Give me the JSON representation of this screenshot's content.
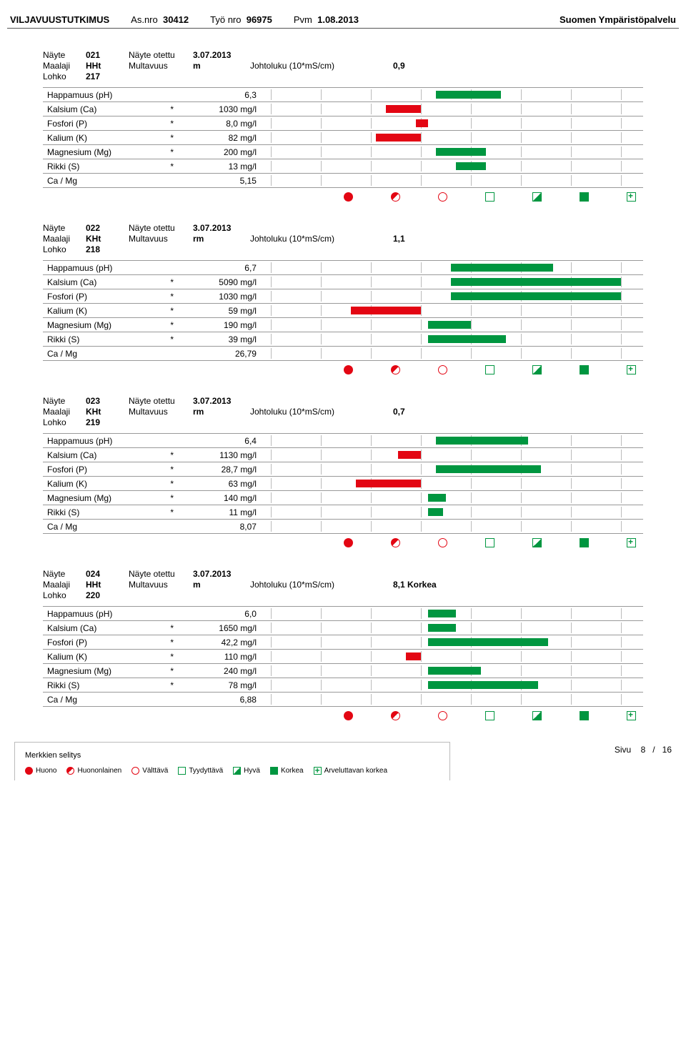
{
  "header": {
    "title": "VILJAVUUSTUTKIMUS",
    "asnro_label": "As.nro",
    "asnro": "30412",
    "tyonro_label": "Työ nro",
    "tyonro": "96975",
    "pvm_label": "Pvm",
    "pvm": "1.08.2013",
    "company": "Suomen Ympäristöpalvelu"
  },
  "labels": {
    "nayte": "Näyte",
    "maalaji": "Maalaji",
    "lohko": "Lohko",
    "nayte_otettu": "Näyte otettu",
    "multavuus": "Multavuus",
    "johtoluku": "Johtoluku (10*mS/cm)"
  },
  "chart": {
    "columns": 7,
    "grid_color": "#bbbbbb",
    "red": "#e30613",
    "green": "#009640"
  },
  "samples": [
    {
      "nayte": "021",
      "maalaji": "HHt",
      "lohko": "217",
      "otettu": "3.07.2013",
      "multavuus": "m",
      "johtoluku": "0,9",
      "johtoluku_note": "",
      "rows": [
        {
          "name": "Happamuus (pH)",
          "star": "",
          "value": "6,3",
          "bar": {
            "start": 3.3,
            "end": 4.6,
            "color": "green"
          }
        },
        {
          "name": "Kalsium (Ca)",
          "star": "*",
          "value": "1030 mg/l",
          "bar": {
            "start": 2.3,
            "end": 3.0,
            "color": "red"
          }
        },
        {
          "name": "Fosfori (P)",
          "star": "*",
          "value": "8,0 mg/l",
          "bar": {
            "start": 2.9,
            "end": 3.15,
            "color": "red"
          }
        },
        {
          "name": "Kalium (K)",
          "star": "*",
          "value": "82 mg/l",
          "bar": {
            "start": 2.1,
            "end": 3.0,
            "color": "red"
          }
        },
        {
          "name": "Magnesium (Mg)",
          "star": "*",
          "value": "200 mg/l",
          "bar": {
            "start": 3.3,
            "end": 4.3,
            "color": "green"
          }
        },
        {
          "name": "Rikki (S)",
          "star": "*",
          "value": "13 mg/l",
          "bar": {
            "start": 3.7,
            "end": 4.3,
            "color": "green"
          }
        },
        {
          "name": "Ca / Mg",
          "star": "",
          "value": "5,15",
          "bar": null
        }
      ]
    },
    {
      "nayte": "022",
      "maalaji": "KHt",
      "lohko": "218",
      "otettu": "3.07.2013",
      "multavuus": "rm",
      "johtoluku": "1,1",
      "johtoluku_note": "",
      "rows": [
        {
          "name": "Happamuus (pH)",
          "star": "",
          "value": "6,7",
          "bar": {
            "start": 3.6,
            "end": 5.65,
            "color": "green"
          }
        },
        {
          "name": "Kalsium (Ca)",
          "star": "*",
          "value": "5090 mg/l",
          "bar": {
            "start": 3.6,
            "end": 7.0,
            "color": "green"
          }
        },
        {
          "name": "Fosfori (P)",
          "star": "*",
          "value": "1030 mg/l",
          "bar": {
            "start": 3.6,
            "end": 7.0,
            "color": "green"
          }
        },
        {
          "name": "Kalium (K)",
          "star": "*",
          "value": "59 mg/l",
          "bar": {
            "start": 1.6,
            "end": 3.0,
            "color": "red"
          }
        },
        {
          "name": "Magnesium (Mg)",
          "star": "*",
          "value": "190 mg/l",
          "bar": {
            "start": 3.15,
            "end": 4.0,
            "color": "green"
          }
        },
        {
          "name": "Rikki (S)",
          "star": "*",
          "value": "39 mg/l",
          "bar": {
            "start": 3.15,
            "end": 4.7,
            "color": "green"
          }
        },
        {
          "name": "Ca / Mg",
          "star": "",
          "value": "26,79",
          "bar": null
        }
      ]
    },
    {
      "nayte": "023",
      "maalaji": "KHt",
      "lohko": "219",
      "otettu": "3.07.2013",
      "multavuus": "rm",
      "johtoluku": "0,7",
      "johtoluku_note": "",
      "rows": [
        {
          "name": "Happamuus (pH)",
          "star": "",
          "value": "6,4",
          "bar": {
            "start": 3.3,
            "end": 5.15,
            "color": "green"
          }
        },
        {
          "name": "Kalsium (Ca)",
          "star": "*",
          "value": "1130 mg/l",
          "bar": {
            "start": 2.55,
            "end": 3.0,
            "color": "red"
          }
        },
        {
          "name": "Fosfori (P)",
          "star": "*",
          "value": "28,7 mg/l",
          "bar": {
            "start": 3.3,
            "end": 5.4,
            "color": "green"
          }
        },
        {
          "name": "Kalium (K)",
          "star": "*",
          "value": "63 mg/l",
          "bar": {
            "start": 1.7,
            "end": 3.0,
            "color": "red"
          }
        },
        {
          "name": "Magnesium (Mg)",
          "star": "*",
          "value": "140 mg/l",
          "bar": {
            "start": 3.15,
            "end": 3.5,
            "color": "green"
          }
        },
        {
          "name": "Rikki (S)",
          "star": "*",
          "value": "11 mg/l",
          "bar": {
            "start": 3.15,
            "end": 3.45,
            "color": "green"
          }
        },
        {
          "name": "Ca / Mg",
          "star": "",
          "value": "8,07",
          "bar": null
        }
      ]
    },
    {
      "nayte": "024",
      "maalaji": "HHt",
      "lohko": "220",
      "otettu": "3.07.2013",
      "multavuus": "m",
      "johtoluku": "8,1",
      "johtoluku_note": "Korkea",
      "rows": [
        {
          "name": "Happamuus (pH)",
          "star": "",
          "value": "6,0",
          "bar": {
            "start": 3.15,
            "end": 3.7,
            "color": "green"
          }
        },
        {
          "name": "Kalsium (Ca)",
          "star": "*",
          "value": "1650 mg/l",
          "bar": {
            "start": 3.15,
            "end": 3.7,
            "color": "green"
          }
        },
        {
          "name": "Fosfori (P)",
          "star": "*",
          "value": "42,2 mg/l",
          "bar": {
            "start": 3.15,
            "end": 5.55,
            "color": "green"
          }
        },
        {
          "name": "Kalium (K)",
          "star": "*",
          "value": "110 mg/l",
          "bar": {
            "start": 2.7,
            "end": 3.0,
            "color": "red"
          }
        },
        {
          "name": "Magnesium (Mg)",
          "star": "*",
          "value": "240 mg/l",
          "bar": {
            "start": 3.15,
            "end": 4.2,
            "color": "green"
          }
        },
        {
          "name": "Rikki (S)",
          "star": "*",
          "value": "78 mg/l",
          "bar": {
            "start": 3.15,
            "end": 5.35,
            "color": "green"
          }
        },
        {
          "name": "Ca / Mg",
          "star": "",
          "value": "6,88",
          "bar": null
        }
      ]
    }
  ],
  "footer": {
    "legend_title": "Merkkien selitys",
    "items": [
      {
        "sym": "sym-c-fill",
        "label": "Huono"
      },
      {
        "sym": "sym-c-half",
        "label": "Huononlainen"
      },
      {
        "sym": "sym-c-empty",
        "label": "Välttävä"
      },
      {
        "sym": "sym-s-empty",
        "label": "Tyydyttävä"
      },
      {
        "sym": "sym-s-half",
        "label": "Hyvä"
      },
      {
        "sym": "sym-s-fill",
        "label": "Korkea"
      },
      {
        "sym": "sym-s-plus",
        "label": "Arveluttavan korkea"
      }
    ],
    "page_label": "Sivu",
    "page_current": "8",
    "page_sep": "/",
    "page_total": "16"
  }
}
